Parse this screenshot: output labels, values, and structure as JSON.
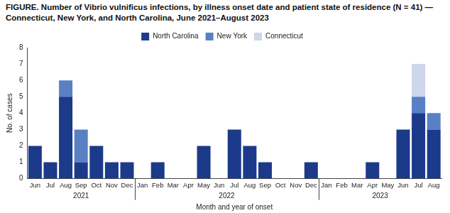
{
  "chart_data": {
    "type": "bar",
    "title": "FIGURE. Number of Vibrio vulnificus infections, by illness onset date and patient state of residence (N = 41) — Connecticut, New York, and North Carolina, June 2021–August 2023",
    "x_label": "Month and year of onset",
    "y_label": "No. of cases",
    "categories": [
      "Jun",
      "Jul",
      "Aug",
      "Sep",
      "Oct",
      "Nov",
      "Dec",
      "Jan",
      "Feb",
      "Mar",
      "Apr",
      "May",
      "Jun",
      "Jul",
      "Aug",
      "Sep",
      "Oct",
      "Nov",
      "Dec",
      "Jan",
      "Feb",
      "Mar",
      "Apr",
      "May",
      "Jun",
      "Jul",
      "Aug"
    ],
    "category_groups": [
      {
        "label": "2021",
        "size": 7
      },
      {
        "label": "2022",
        "size": 12
      },
      {
        "label": "2023",
        "size": 8
      }
    ],
    "series": [
      {
        "name": "North Carolina",
        "color": "#1c3a8a",
        "values": [
          2,
          1,
          5,
          1,
          2,
          1,
          1,
          0,
          1,
          0,
          0,
          2,
          0,
          3,
          2,
          1,
          0,
          0,
          1,
          0,
          0,
          0,
          1,
          0,
          3,
          4,
          3
        ]
      },
      {
        "name": "New York",
        "color": "#5a80c4",
        "values": [
          0,
          0,
          1,
          2,
          0,
          0,
          0,
          0,
          0,
          0,
          0,
          0,
          0,
          0,
          0,
          0,
          0,
          0,
          0,
          0,
          0,
          0,
          0,
          0,
          0,
          1,
          1
        ]
      },
      {
        "name": "Connecticut",
        "color": "#cdd6ea",
        "values": [
          0,
          0,
          0,
          0,
          0,
          0,
          0,
          0,
          0,
          0,
          0,
          0,
          0,
          0,
          0,
          0,
          0,
          0,
          0,
          0,
          0,
          0,
          0,
          0,
          0,
          2,
          0
        ]
      }
    ],
    "stacked": true,
    "ylim": [
      0,
      8
    ],
    "yticks": [
      0,
      1,
      2,
      3,
      4,
      5,
      6,
      7,
      8
    ],
    "grid": false,
    "legend": "top"
  }
}
